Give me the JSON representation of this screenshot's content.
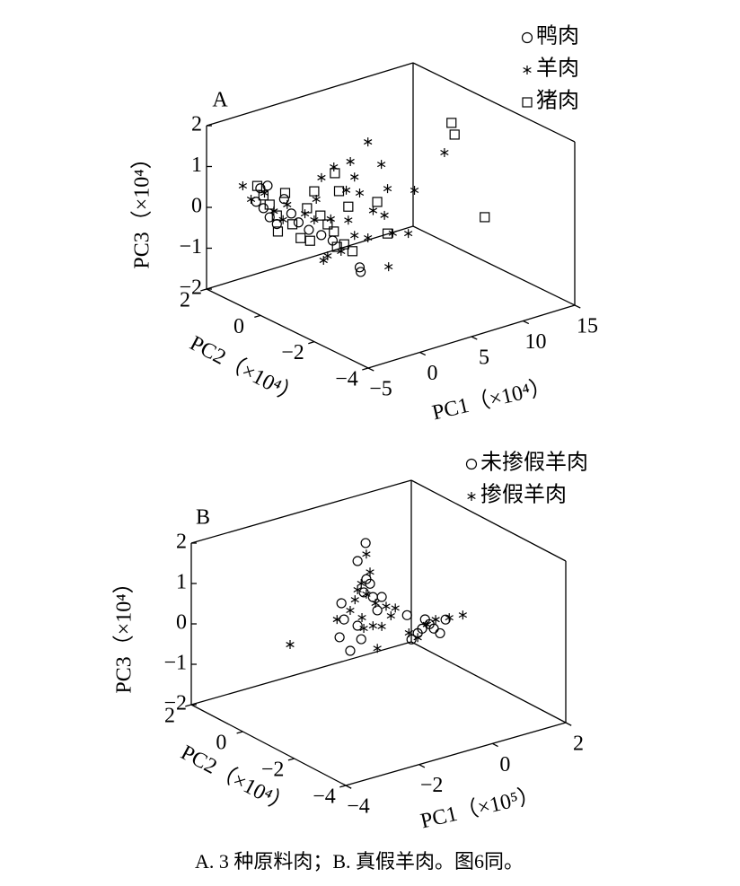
{
  "chart_data": [
    {
      "type": "scatter3d",
      "label": "A",
      "xlabel": "PC1（×10⁴）",
      "ylabel": "PC2（×10⁴）",
      "zlabel": "PC3（×10⁴）",
      "xlim": [
        -5,
        15
      ],
      "xticks": [
        {
          "value": -5,
          "label": "−5"
        },
        0,
        5,
        10,
        15
      ],
      "ylim": [
        -4,
        2
      ],
      "yticks": [
        {
          "value": -4,
          "label": "−4"
        },
        {
          "value": -2,
          "label": "−2"
        },
        0,
        2
      ],
      "zlim": [
        -2,
        2
      ],
      "zticks": [
        {
          "value": -2,
          "label": "−2"
        },
        {
          "value": -1,
          "label": "−1"
        },
        0,
        1,
        2
      ],
      "series": [
        {
          "name": "鸭肉",
          "marker": "circle",
          "color": "#000000",
          "x": [
            -2.4,
            -1.7,
            -2.8,
            -2.1,
            -1.5,
            -0.8,
            -0.1,
            0.6,
            1.3,
            2.3,
            3.5,
            4.6,
            2.0,
            2.1
          ],
          "y": [
            1,
            1,
            1,
            1,
            1,
            1,
            1,
            1,
            1,
            1,
            1,
            1,
            -1,
            -1
          ],
          "z": [
            0.59,
            0.6,
            0.29,
            0.08,
            -0.19,
            -0.41,
            0.15,
            -0.26,
            -0.53,
            -0.79,
            -1.01,
            -1.23,
            -1.04,
            -1.16
          ]
        },
        {
          "name": "羊肉",
          "marker": "star",
          "color": "#000000",
          "x": [
            -4.1,
            -3.3,
            -2.0,
            -1.1,
            -0.2,
            0.2,
            -3.3,
            -2.2,
            -1.7,
            -0.8,
            -0.5,
            0.7,
            1.1,
            1.5,
            2.0,
            2.8,
            3.3,
            4.1,
            4.4,
            4.7,
            5.2,
            -1.1,
            0.2,
            -1.5,
            1.5,
            2.8,
            4.8,
            -2.4,
            0.9,
            4.1,
            4.7,
            7.6
          ],
          "y": [
            1,
            1,
            1,
            1,
            1,
            1,
            -1,
            -1,
            -1,
            -1,
            -1,
            -1,
            -1,
            -1,
            -1,
            -1,
            -1,
            -1,
            -1,
            -1,
            -1,
            -1,
            -1,
            -1,
            -1,
            -1,
            -1,
            -1,
            -1,
            -2,
            -2,
            -2
          ],
          "z": [
            0.78,
            0.39,
            0.44,
            -0.07,
            -0.35,
            -0.01,
            0.68,
            0.95,
            1.44,
            0.36,
            1.61,
            0.95,
            1.62,
            1.21,
            0.78,
            1.97,
            0.25,
            1.32,
            0.05,
            0.68,
            -0.45,
            -0.52,
            -0.51,
            -0.6,
            -0.22,
            -0.38,
            -1.24,
            0.46,
            0.2,
            -0.05,
            0.96,
            1.66
          ]
        },
        {
          "name": "猪肉",
          "marker": "square",
          "color": "#000000",
          "x": [
            -2.7,
            -2.1,
            -1.5,
            -0.8,
            0.0,
            0.7,
            1.5,
            -0.7,
            -3.1,
            -2.4,
            -1.8,
            -1.1,
            -0.4,
            0.0,
            0.9,
            -0.5,
            0.5,
            1.3,
            -0.2,
            3.7,
            4.7,
            -2.8,
            13.5,
            13.8,
            11.5
          ],
          "y": [
            1,
            1,
            1,
            1,
            1,
            1,
            1,
            1,
            -1,
            -1,
            -1,
            -1,
            -1,
            -1,
            -1,
            -1,
            -1,
            -1,
            -1,
            -1,
            -1,
            -1,
            0,
            0,
            -2
          ],
          "z": [
            0.67,
            0.39,
            0.12,
            -0.2,
            0.29,
            -0.53,
            -0.93,
            -0.6,
            0.8,
            1.16,
            0.52,
            0.25,
            1.45,
            0.98,
            0.53,
            0.03,
            -0.36,
            -0.59,
            -0.37,
            0.43,
            -0.42,
            -0.02,
            1.29,
            0.98,
            -0.22
          ]
        }
      ]
    },
    {
      "type": "scatter3d",
      "label": "B",
      "xlabel": "PC1（×10⁵）",
      "ylabel": "PC2（×10⁴）",
      "zlabel": "PC3（×10⁴）",
      "xlim": [
        -4,
        2
      ],
      "xticks": [
        {
          "value": -4,
          "label": "−4"
        },
        {
          "value": -2,
          "label": "−2"
        },
        0,
        2
      ],
      "ylim": [
        -4,
        2
      ],
      "yticks": [
        {
          "value": -4,
          "label": "−4"
        },
        {
          "value": -2,
          "label": "−2"
        },
        0,
        2
      ],
      "zlim": [
        -2,
        2
      ],
      "zticks": [
        {
          "value": -2,
          "label": "−2"
        },
        {
          "value": -1,
          "label": "−1"
        },
        0,
        1,
        2
      ],
      "series": [
        {
          "name": "未掺假羊肉",
          "marker": "circle",
          "color": "#000000",
          "x": [
            -0.65,
            -0.87,
            -0.63,
            -0.53,
            -0.7,
            -0.45,
            -0.21,
            -1.31,
            -1.24,
            -0.33,
            -0.87,
            -1.36,
            -0.77,
            -1.07,
            0.48,
            0.89,
            1.09,
            1.21,
            1.38,
            1.53,
            0.77,
            0.6,
            0.97
          ],
          "y": [
            0,
            0,
            0,
            0,
            0,
            0,
            0,
            0,
            0,
            0,
            0,
            0,
            0,
            0,
            0,
            0,
            0,
            0,
            0,
            0,
            0,
            0,
            0
          ],
          "z": [
            1.8,
            1.41,
            0.9,
            0.76,
            0.59,
            0.41,
            0.35,
            0.48,
            0.06,
            0.05,
            -0.19,
            -0.35,
            -0.55,
            -0.76,
            -0.28,
            -0.72,
            -0.66,
            -0.8,
            -0.96,
            -0.66,
            -0.8,
            -0.91,
            -0.51
          ]
        },
        {
          "name": "掺假羊肉",
          "marker": "star",
          "color": "#000000",
          "x": [
            -0.63,
            -0.53,
            -0.77,
            -0.87,
            -0.63,
            -0.94,
            -0.38,
            -0.09,
            -1.07,
            -0.75,
            0.04,
            -1.43,
            -0.45,
            -0.21,
            -0.7,
            -0.33,
            -2.71,
            0.53,
            0.77,
            1.02,
            1.26,
            1.63,
            2.0,
            0.16
          ],
          "y": [
            0,
            0,
            0,
            0,
            0,
            0,
            0,
            0,
            0,
            0,
            0,
            0,
            0,
            0,
            0,
            0,
            0,
            0,
            0,
            0,
            0,
            0,
            0,
            0
          ],
          "z": [
            1.52,
            1.05,
            0.83,
            0.7,
            0.53,
            0.47,
            0.24,
            0.09,
            0.24,
            -0.02,
            -0.18,
            0.11,
            -0.3,
            -0.38,
            -0.3,
            -0.89,
            -0.18,
            -0.73,
            -0.91,
            -0.65,
            -0.59,
            -0.64,
            -0.67,
            -0.02
          ]
        }
      ]
    }
  ],
  "caption": "A. 3 种原料肉；B. 真假羊肉。图6同。"
}
